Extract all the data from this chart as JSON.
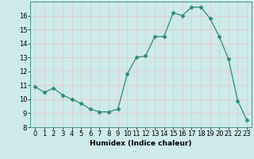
{
  "x": [
    0,
    1,
    2,
    3,
    4,
    5,
    6,
    7,
    8,
    9,
    10,
    11,
    12,
    13,
    14,
    15,
    16,
    17,
    18,
    19,
    20,
    21,
    22,
    23
  ],
  "y": [
    10.9,
    10.5,
    10.8,
    10.3,
    10.0,
    9.7,
    9.3,
    9.1,
    9.1,
    9.3,
    11.8,
    13.0,
    13.1,
    14.5,
    14.5,
    16.2,
    16.0,
    16.6,
    16.6,
    15.8,
    14.5,
    12.9,
    9.9,
    8.5
  ],
  "line_color": "#2e8b74",
  "marker": "D",
  "marker_size": 2.5,
  "bg_color": "#ceeaea",
  "grid_color": "#e8c8c8",
  "xlabel": "Humidex (Indice chaleur)",
  "xlim": [
    -0.5,
    23.5
  ],
  "ylim": [
    8,
    17
  ],
  "yticks": [
    8,
    9,
    10,
    11,
    12,
    13,
    14,
    15,
    16
  ],
  "xticks": [
    0,
    1,
    2,
    3,
    4,
    5,
    6,
    7,
    8,
    9,
    10,
    11,
    12,
    13,
    14,
    15,
    16,
    17,
    18,
    19,
    20,
    21,
    22,
    23
  ],
  "label_fontsize": 6.5,
  "tick_fontsize": 6
}
